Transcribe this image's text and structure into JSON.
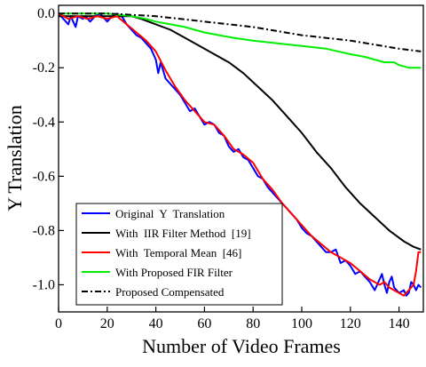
{
  "chart_data": {
    "type": "line",
    "title": "",
    "xlabel": "Number of Video Frames",
    "ylabel": "Y Translation",
    "xlim": [
      0,
      150
    ],
    "ylim": [
      -1.1,
      0.03
    ],
    "x_ticks": [
      0,
      20,
      40,
      60,
      80,
      100,
      120,
      140
    ],
    "y_ticks": [
      0.0,
      -0.2,
      -0.4,
      -0.6,
      -0.8,
      -1.0
    ],
    "y_tick_labels": [
      "0.0",
      "-0.2",
      "-0.4",
      "-0.6",
      "-0.8",
      "-1.0"
    ],
    "grid": false,
    "legend_position": "bottom-left",
    "series": [
      {
        "name": "Original  Y  Translation",
        "color": "#0000ff",
        "dash": "solid",
        "x": [
          0,
          2,
          4,
          5,
          7,
          8,
          10,
          11,
          13,
          15,
          17,
          19,
          20,
          22,
          24,
          26,
          28,
          30,
          32,
          34,
          36,
          38,
          40,
          41,
          42,
          44,
          46,
          48,
          50,
          52,
          54,
          56,
          58,
          60,
          62,
          64,
          66,
          68,
          70,
          72,
          74,
          76,
          78,
          80,
          82,
          84,
          86,
          88,
          90,
          92,
          94,
          96,
          98,
          100,
          102,
          104,
          106,
          108,
          110,
          112,
          114,
          116,
          118,
          120,
          122,
          124,
          126,
          128,
          130,
          132,
          133,
          134,
          135,
          136,
          137,
          138,
          140,
          142,
          143,
          144,
          145,
          146,
          147,
          148,
          149
        ],
        "y": [
          0.0,
          -0.02,
          -0.04,
          -0.01,
          -0.05,
          -0.01,
          -0.02,
          -0.01,
          -0.03,
          -0.01,
          0.0,
          -0.02,
          -0.03,
          -0.01,
          0.0,
          -0.01,
          -0.04,
          -0.06,
          -0.08,
          -0.09,
          -0.11,
          -0.13,
          -0.17,
          -0.22,
          -0.18,
          -0.24,
          -0.26,
          -0.28,
          -0.3,
          -0.33,
          -0.36,
          -0.35,
          -0.38,
          -0.41,
          -0.4,
          -0.41,
          -0.44,
          -0.45,
          -0.49,
          -0.51,
          -0.5,
          -0.53,
          -0.54,
          -0.57,
          -0.6,
          -0.61,
          -0.64,
          -0.66,
          -0.68,
          -0.7,
          -0.72,
          -0.74,
          -0.76,
          -0.79,
          -0.81,
          -0.82,
          -0.84,
          -0.86,
          -0.88,
          -0.88,
          -0.87,
          -0.92,
          -0.91,
          -0.93,
          -0.96,
          -0.95,
          -0.97,
          -0.99,
          -1.02,
          -0.98,
          -0.96,
          -1.0,
          -1.03,
          -0.99,
          -0.97,
          -1.01,
          -1.03,
          -1.02,
          -1.04,
          -1.03,
          -0.99,
          -1.0,
          -1.02,
          -1.0,
          -1.01
        ]
      },
      {
        "name": "With  IIR Filter Method  [19]",
        "color": "#000000",
        "dash": "solid",
        "x": [
          0,
          10,
          20,
          30,
          34,
          40,
          46,
          52,
          58,
          64,
          70,
          76,
          82,
          88,
          94,
          100,
          106,
          112,
          118,
          124,
          130,
          136,
          142,
          146,
          149
        ],
        "y": [
          -0.01,
          -0.01,
          -0.01,
          -0.01,
          -0.02,
          -0.04,
          -0.06,
          -0.09,
          -0.12,
          -0.15,
          -0.18,
          -0.22,
          -0.27,
          -0.32,
          -0.38,
          -0.44,
          -0.51,
          -0.57,
          -0.64,
          -0.7,
          -0.75,
          -0.8,
          -0.84,
          -0.86,
          -0.87
        ]
      },
      {
        "name": "With  Temporal Mean  [46]",
        "color": "#ff0000",
        "dash": "solid",
        "x": [
          0,
          4,
          8,
          12,
          16,
          20,
          24,
          28,
          32,
          36,
          40,
          44,
          48,
          52,
          56,
          60,
          64,
          68,
          72,
          76,
          80,
          84,
          88,
          92,
          96,
          100,
          104,
          108,
          112,
          116,
          120,
          124,
          128,
          132,
          134,
          136,
          138,
          140,
          142,
          144,
          146,
          147,
          148,
          149
        ],
        "y": [
          0.0,
          -0.02,
          -0.01,
          -0.02,
          -0.01,
          -0.02,
          -0.01,
          -0.04,
          -0.07,
          -0.1,
          -0.14,
          -0.21,
          -0.27,
          -0.32,
          -0.36,
          -0.4,
          -0.41,
          -0.45,
          -0.5,
          -0.52,
          -0.55,
          -0.61,
          -0.65,
          -0.7,
          -0.74,
          -0.78,
          -0.82,
          -0.85,
          -0.88,
          -0.9,
          -0.92,
          -0.95,
          -0.98,
          -1.0,
          -0.99,
          -1.01,
          -1.02,
          -1.03,
          -1.04,
          -1.02,
          -1.0,
          -0.95,
          -0.88,
          -0.88
        ]
      },
      {
        "name": "With Proposed FIR Filter",
        "color": "#00ee00",
        "dash": "solid",
        "x": [
          0,
          10,
          20,
          30,
          36,
          40,
          46,
          52,
          56,
          60,
          66,
          72,
          80,
          90,
          100,
          110,
          120,
          126,
          130,
          134,
          138,
          140,
          144,
          149
        ],
        "y": [
          0.0,
          0.0,
          0.0,
          -0.01,
          -0.02,
          -0.03,
          -0.04,
          -0.05,
          -0.06,
          -0.07,
          -0.08,
          -0.09,
          -0.1,
          -0.11,
          -0.12,
          -0.13,
          -0.15,
          -0.16,
          -0.17,
          -0.18,
          -0.18,
          -0.19,
          -0.2,
          -0.2
        ]
      },
      {
        "name": "Proposed Compensated",
        "color": "#000000",
        "dash": "dash-dot",
        "x": [
          0,
          20,
          40,
          60,
          80,
          100,
          120,
          140,
          149
        ],
        "y": [
          0.0,
          0.0,
          -0.01,
          -0.03,
          -0.05,
          -0.08,
          -0.1,
          -0.13,
          -0.14
        ]
      }
    ]
  }
}
